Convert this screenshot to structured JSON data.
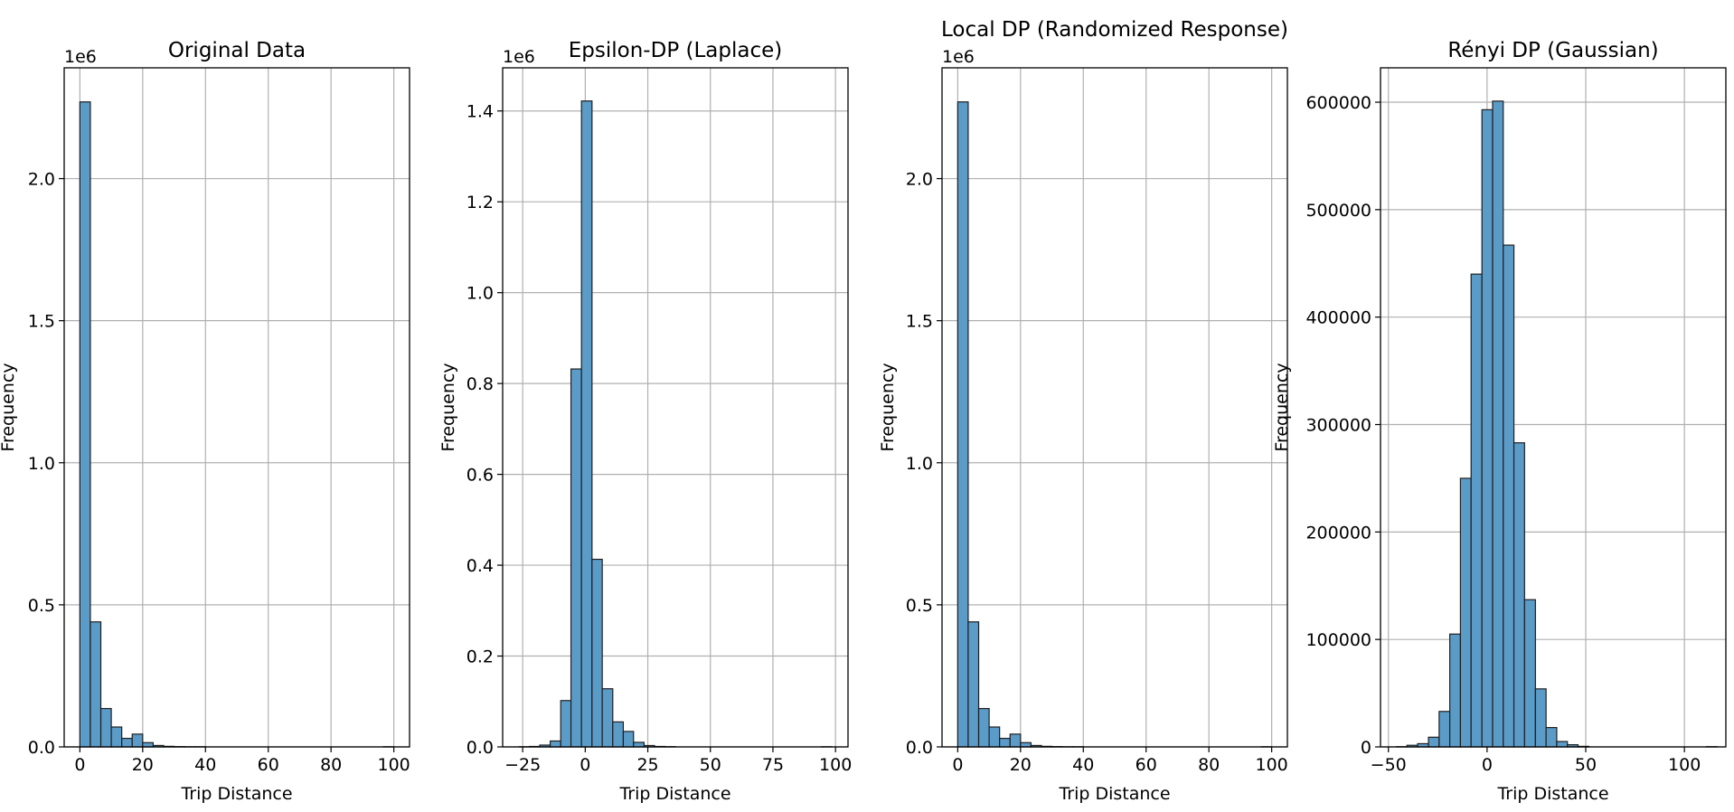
{
  "chart_data": [
    {
      "type": "bar",
      "title": "Original Data",
      "xlabel": "Trip Distance",
      "ylabel": "Frequency",
      "y_offset_label": "1e6",
      "xlim": [
        -5,
        105
      ],
      "ylim": [
        0,
        2.39
      ],
      "xticks": [
        0,
        20,
        40,
        60,
        80,
        100
      ],
      "xtick_labels": [
        "0",
        "20",
        "40",
        "60",
        "80",
        "100"
      ],
      "yticks": [
        0,
        0.5,
        1.0,
        1.5,
        2.0
      ],
      "ytick_labels": [
        "0.0",
        "0.5",
        "1.0",
        "1.5",
        "2.0"
      ],
      "grid": true,
      "bin_edges": [
        0,
        3.33,
        6.67,
        10,
        13.33,
        16.67,
        20,
        23.33,
        26.67,
        30,
        33.33,
        36.67,
        40,
        43.33,
        46.67,
        50,
        53.33,
        56.67,
        60,
        63.33,
        66.67,
        70,
        73.33,
        76.67,
        80,
        83.33,
        86.67,
        90,
        93.33,
        96.67,
        100
      ],
      "values": [
        2.27,
        0.44,
        0.135,
        0.07,
        0.03,
        0.045,
        0.015,
        0.005,
        0.002,
        0.001,
        0.0005,
        0.0005,
        0,
        0,
        0,
        0,
        0,
        0,
        0,
        0,
        0,
        0,
        0,
        0,
        0,
        0,
        0,
        0,
        0,
        0.0005
      ]
    },
    {
      "type": "bar",
      "title": "Epsilon-DP (Laplace)",
      "xlabel": "Trip Distance",
      "ylabel": "Frequency",
      "y_offset_label": "1e6",
      "xlim": [
        -33,
        105
      ],
      "ylim": [
        0,
        1.495
      ],
      "xticks": [
        -25,
        0,
        25,
        50,
        75,
        100
      ],
      "xtick_labels": [
        "−25",
        "0",
        "25",
        "50",
        "75",
        "100"
      ],
      "yticks": [
        0,
        0.2,
        0.4,
        0.6,
        0.8,
        1.0,
        1.2,
        1.4
      ],
      "ytick_labels": [
        "0.0",
        "0.2",
        "0.4",
        "0.6",
        "0.8",
        "1.0",
        "1.2",
        "1.4"
      ],
      "grid": true,
      "bin_edges": [
        -26.5,
        -22.3,
        -18.2,
        -14.0,
        -9.8,
        -5.7,
        -1.5,
        2.7,
        6.8,
        11.0,
        15.2,
        19.3,
        23.5,
        27.7,
        31.8,
        36.0,
        40.2,
        44.3,
        48.5,
        52.7,
        56.8,
        61.0,
        65.2,
        69.3,
        73.5,
        77.7,
        81.8,
        86.0,
        90.2,
        94.3,
        98.5
      ],
      "values": [
        0.0003,
        0.001,
        0.004,
        0.013,
        0.102,
        0.832,
        1.422,
        0.413,
        0.128,
        0.055,
        0.034,
        0.01,
        0.003,
        0.001,
        0.0005,
        0,
        0,
        0,
        0,
        0,
        0,
        0,
        0,
        0,
        0,
        0,
        0,
        0,
        0,
        0.0003
      ]
    },
    {
      "type": "bar",
      "title": "Local DP (Randomized Response)",
      "xlabel": "Trip Distance",
      "ylabel": "Frequency",
      "y_offset_label": "1e6",
      "xlim": [
        -5,
        105
      ],
      "ylim": [
        0,
        2.39
      ],
      "xticks": [
        0,
        20,
        40,
        60,
        80,
        100
      ],
      "xtick_labels": [
        "0",
        "20",
        "40",
        "60",
        "80",
        "100"
      ],
      "yticks": [
        0,
        0.5,
        1.0,
        1.5,
        2.0
      ],
      "ytick_labels": [
        "0.0",
        "0.5",
        "1.0",
        "1.5",
        "2.0"
      ],
      "grid": true,
      "bin_edges": [
        0,
        3.33,
        6.67,
        10,
        13.33,
        16.67,
        20,
        23.33,
        26.67,
        30,
        33.33,
        36.67,
        40,
        43.33,
        46.67,
        50,
        53.33,
        56.67,
        60,
        63.33,
        66.67,
        70,
        73.33,
        76.67,
        80,
        83.33,
        86.67,
        90,
        93.33,
        96.67,
        100
      ],
      "values": [
        2.27,
        0.44,
        0.135,
        0.07,
        0.03,
        0.045,
        0.015,
        0.005,
        0.002,
        0.001,
        0.0005,
        0.0005,
        0,
        0,
        0,
        0,
        0,
        0,
        0,
        0,
        0,
        0,
        0,
        0,
        0,
        0,
        0,
        0,
        0,
        0.0005
      ]
    },
    {
      "type": "bar",
      "title": "Rényi DP (Gaussian)",
      "xlabel": "Trip Distance",
      "ylabel": "Frequency",
      "y_offset_label": "",
      "xlim": [
        -54,
        121
      ],
      "ylim": [
        0,
        632000
      ],
      "xticks": [
        -50,
        0,
        50,
        100
      ],
      "xtick_labels": [
        "−50",
        "0",
        "50",
        "100"
      ],
      "yticks": [
        0,
        100000,
        200000,
        300000,
        400000,
        500000,
        600000
      ],
      "ytick_labels": [
        "0",
        "100000",
        "200000",
        "300000",
        "400000",
        "500000",
        "600000"
      ],
      "grid": true,
      "bin_edges": [
        -46.0,
        -40.6,
        -35.2,
        -29.7,
        -24.3,
        -18.9,
        -13.5,
        -8.1,
        -2.6,
        2.8,
        8.2,
        13.6,
        19.0,
        24.5,
        29.9,
        35.3,
        40.7,
        46.1,
        51.6,
        57.0,
        62.4,
        67.8,
        73.2,
        78.7,
        84.1,
        89.5,
        94.9,
        100.3,
        105.8,
        111.2,
        116.6
      ],
      "values": [
        200,
        1500,
        3000,
        9000,
        33000,
        105000,
        250000,
        440000,
        593000,
        601000,
        467000,
        283000,
        137000,
        54000,
        18000,
        5000,
        2000,
        500,
        0,
        0,
        0,
        0,
        0,
        0,
        0,
        0,
        0,
        0,
        0,
        200
      ]
    }
  ],
  "colors": {
    "bar_fill": "#5b9bc8",
    "bar_edge": "#1f1f1f",
    "grid": "#b0b0b0",
    "axes": "#000000"
  }
}
